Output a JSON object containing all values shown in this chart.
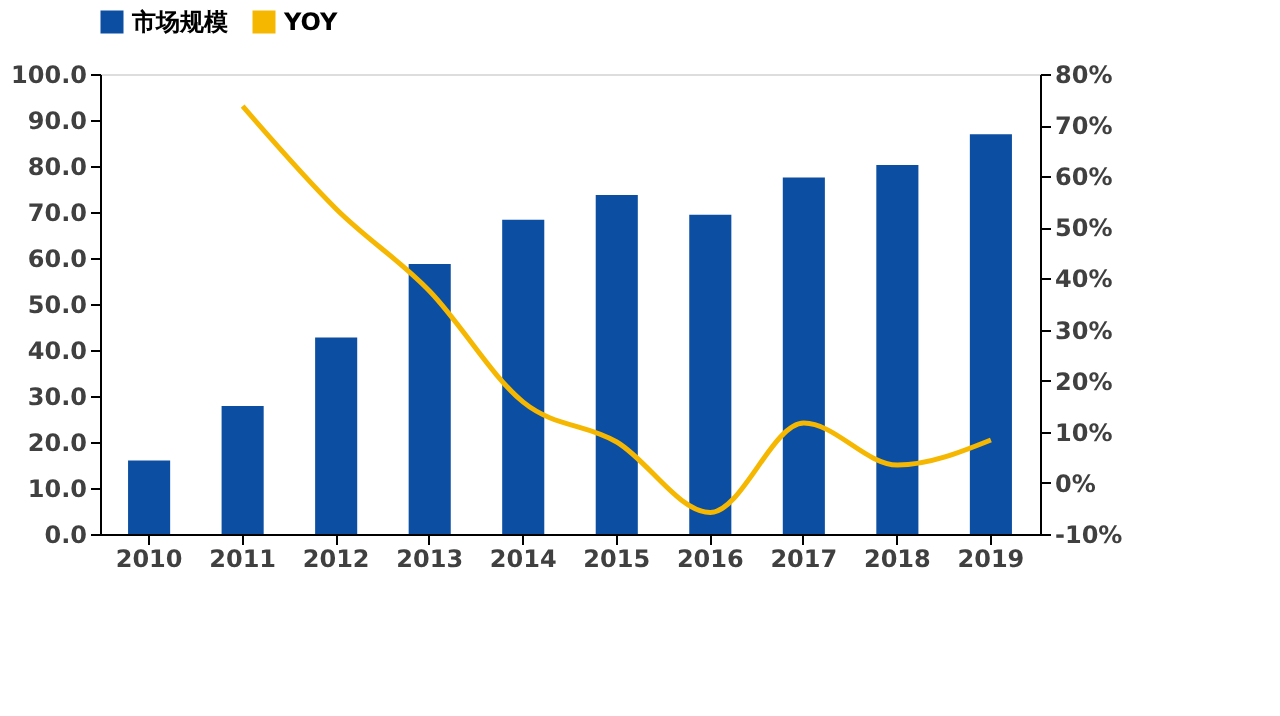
{
  "chart_data": {
    "type": "bar",
    "categories": [
      "2010",
      "2011",
      "2012",
      "2013",
      "2014",
      "2015",
      "2016",
      "2017",
      "2018",
      "2019"
    ],
    "series": [
      {
        "name": "市场规模",
        "color": "#0b4ea2",
        "values": [
          16.0,
          27.8,
          42.7,
          58.7,
          68.3,
          73.7,
          69.4,
          77.5,
          80.2,
          86.9
        ]
      },
      {
        "name": "YOY",
        "type": "line",
        "axis": "y2",
        "color": "#f5b700",
        "values": [
          null,
          73.7,
          53.6,
          37.5,
          15.8,
          8.0,
          -5.8,
          11.7,
          3.5,
          8.4
        ]
      }
    ],
    "ylim": [
      0,
      100
    ],
    "yticks": [
      {
        "value": 0,
        "label": "0.0"
      },
      {
        "value": 10,
        "label": "10.0"
      },
      {
        "value": 20,
        "label": "20.0"
      },
      {
        "value": 30,
        "label": "30.0"
      },
      {
        "value": 40,
        "label": "40.0"
      },
      {
        "value": 50,
        "label": "50.0"
      },
      {
        "value": 60,
        "label": "60.0"
      },
      {
        "value": 70,
        "label": "70.0"
      },
      {
        "value": 80,
        "label": "80.0"
      },
      {
        "value": 90,
        "label": "90.0"
      },
      {
        "value": 100,
        "label": "100.0"
      }
    ],
    "y2lim": [
      -10,
      80
    ],
    "y2ticks": [
      {
        "value": -10,
        "label": "-10%"
      },
      {
        "value": 0,
        "label": "0%"
      },
      {
        "value": 10,
        "label": "10%"
      },
      {
        "value": 20,
        "label": "20%"
      },
      {
        "value": 30,
        "label": "30%"
      },
      {
        "value": 40,
        "label": "40%"
      },
      {
        "value": 50,
        "label": "50%"
      },
      {
        "value": 60,
        "label": "60%"
      },
      {
        "value": 70,
        "label": "70%"
      },
      {
        "value": 80,
        "label": "80%"
      }
    ],
    "legend": "top",
    "grid": false
  }
}
